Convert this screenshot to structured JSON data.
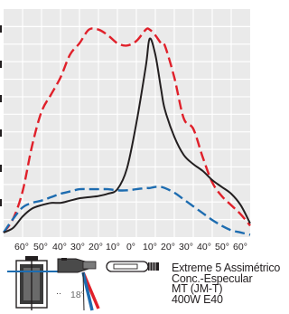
{
  "chart_data": {
    "type": "line",
    "title": "",
    "xlabel": "",
    "ylabel": "",
    "x_tick_labels": [
      "60°",
      "50°",
      "40°",
      "30°",
      "20°",
      "10°",
      "0°",
      "10°",
      "20°",
      "30°",
      "40°",
      "50°",
      "60°"
    ],
    "x": [
      -65,
      -60,
      -55,
      -50,
      -45,
      -40,
      -35,
      -30,
      -25,
      -20,
      -15,
      -10,
      -5,
      0,
      5,
      10,
      12,
      15,
      18,
      20,
      25,
      30,
      35,
      40,
      45,
      50,
      55,
      60,
      65
    ],
    "xlim": [
      -65,
      65
    ],
    "grid": true,
    "legend": "none",
    "series": [
      {
        "color": "#e0202a",
        "dash": "dashed",
        "values": [
          4,
          16,
          40,
          80,
          110,
          125,
          140,
          160,
          170,
          182,
          182,
          177,
          170,
          168,
          172,
          182,
          182,
          177,
          170,
          168,
          140,
          104,
          95,
          70,
          48,
          36,
          28,
          20,
          10
        ]
      },
      {
        "color": "#1d6cb0",
        "dash": "dashed",
        "values": [
          4,
          16,
          26,
          30,
          32,
          35,
          38,
          40,
          42,
          42,
          42,
          42,
          41,
          41,
          42,
          43,
          43,
          44,
          44,
          43,
          39,
          33,
          27,
          21,
          15,
          10,
          6,
          4,
          2
        ]
      },
      {
        "color": "#231f20",
        "dash": "solid",
        "values": [
          4,
          8,
          18,
          25,
          28,
          30,
          30,
          32,
          34,
          35,
          36,
          38,
          42,
          60,
          100,
          150,
          174,
          160,
          130,
          112,
          88,
          72,
          64,
          58,
          50,
          44,
          38,
          28,
          12
        ]
      }
    ]
  },
  "colors": {
    "grid_bg": "#eaeaea",
    "grid_line": "#ffffff"
  },
  "icons": [
    "fixture-front-icon",
    "fixture-side-icon",
    "beam-angle-icon",
    "lamp-icon"
  ],
  "beam_angle_label": "18°",
  "small_mark": "··",
  "info": {
    "line1": "Extreme 5 Assimétrico",
    "line2": "Conc.-Especular",
    "line3": "MT (JM-T)",
    "line4": "400W E40"
  }
}
